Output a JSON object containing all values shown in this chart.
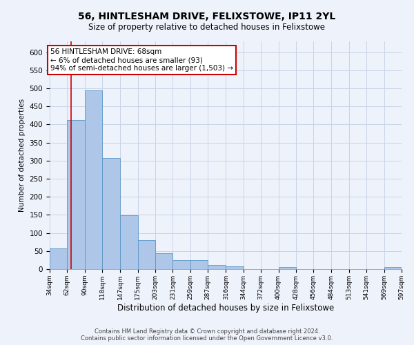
{
  "title1": "56, HINTLESHAM DRIVE, FELIXSTOWE, IP11 2YL",
  "title2": "Size of property relative to detached houses in Felixstowe",
  "xlabel": "Distribution of detached houses by size in Felixstowe",
  "ylabel": "Number of detached properties",
  "annotation_line1": "56 HINTLESHAM DRIVE: 68sqm",
  "annotation_line2": "← 6% of detached houses are smaller (93)",
  "annotation_line3": "94% of semi-detached houses are larger (1,503) →",
  "footer1": "Contains HM Land Registry data © Crown copyright and database right 2024.",
  "footer2": "Contains public sector information licensed under the Open Government Licence v3.0.",
  "bar_edges": [
    34,
    62,
    90,
    118,
    147,
    175,
    203,
    231,
    259,
    287,
    316,
    344,
    372,
    400,
    428,
    456,
    484,
    513,
    541,
    569,
    597
  ],
  "bar_heights": [
    57,
    412,
    494,
    307,
    149,
    81,
    44,
    25,
    25,
    11,
    7,
    0,
    0,
    5,
    0,
    0,
    0,
    0,
    0,
    5
  ],
  "bar_color": "#aec6e8",
  "bar_edge_color": "#5a96c8",
  "marker_x": 68,
  "marker_color": "#cc0000",
  "ylim": [
    0,
    630
  ],
  "xlim": [
    34,
    597
  ],
  "yticks": [
    0,
    50,
    100,
    150,
    200,
    250,
    300,
    350,
    400,
    450,
    500,
    550,
    600
  ],
  "annotation_box_color": "#cc0000",
  "bg_color": "#eef2fa",
  "plot_bg_color": "#eef2fa",
  "grid_color": "#c8d4e8",
  "title1_fontsize": 10,
  "title2_fontsize": 8.5,
  "xlabel_fontsize": 8.5,
  "ylabel_fontsize": 7.5,
  "xtick_fontsize": 6.5,
  "ytick_fontsize": 7.5,
  "footer_fontsize": 6,
  "annot_fontsize": 7.5
}
